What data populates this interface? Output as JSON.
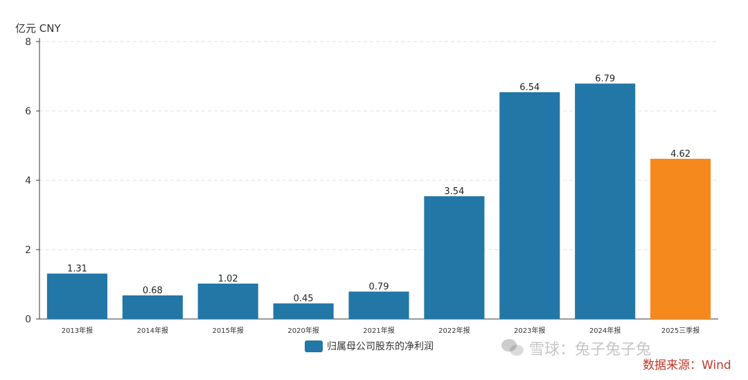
{
  "chart_data": {
    "type": "bar",
    "unit_label": "亿元  CNY",
    "categories": [
      "2013年报",
      "2014年报",
      "2015年报",
      "2020年报",
      "2021年报",
      "2022年报",
      "2023年报",
      "2024年报",
      "2025三季报"
    ],
    "series": [
      {
        "name": "归属母公司股东的净利润",
        "values": [
          1.31,
          0.68,
          1.02,
          0.45,
          0.79,
          3.54,
          6.54,
          6.79,
          4.62
        ],
        "value_labels": [
          "1.31",
          "0.68",
          "1.02",
          "0.45",
          "0.79",
          "3.54",
          "6.54",
          "6.79",
          "4.62"
        ]
      }
    ],
    "ylim": [
      0,
      8
    ],
    "yticks": [
      0,
      2,
      4,
      6,
      8
    ],
    "grid": "horizontal dashed",
    "legend_position": "bottom",
    "colors": {
      "bar": "#2277a7",
      "highlight": "#f5891e",
      "highlight_index": 8,
      "grid": "#dddddd",
      "axis": "#333333"
    }
  },
  "watermark": {
    "text": "雪球：兔子兔子兔",
    "icon": "wechat-icon"
  },
  "source_text": "数据来源：Wind"
}
